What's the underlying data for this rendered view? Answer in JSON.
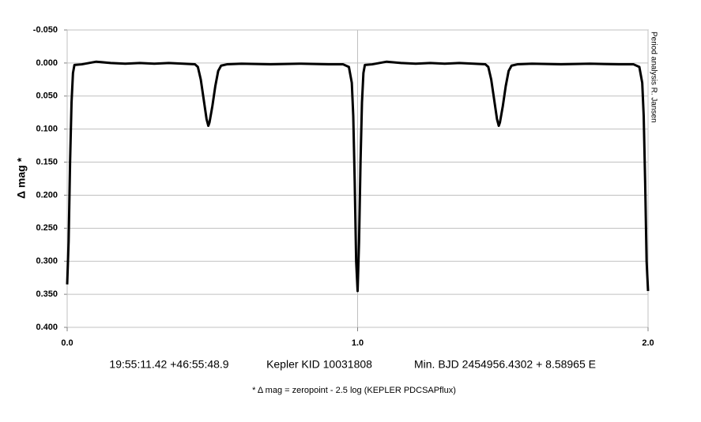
{
  "chart_data": {
    "type": "line",
    "ylabel": "Δ mag *",
    "credit": "Period analysis R. Jansen",
    "annotations": [
      "19:55:11.42 +46:55:48.9",
      "Kepler KID 10031808",
      "Min. BJD 2454956.4302 + 8.58965 E"
    ],
    "footnote": "* Δ mag = zeropoint - 2.5 log (KEPLER PDCSAPflux)",
    "color": "#000000",
    "y_inverted": true,
    "grid": true,
    "xlim": [
      0,
      2
    ],
    "xticks": [
      {
        "value": 0,
        "label": "0.0"
      },
      {
        "value": 1,
        "label": "1.0"
      },
      {
        "value": 2,
        "label": "2.0"
      }
    ],
    "ylim": [
      -0.05,
      0.4
    ],
    "yticks": [
      {
        "value": -0.05,
        "label": "-0.050"
      },
      {
        "value": 0,
        "label": "0.000"
      },
      {
        "value": 0.05,
        "label": "0.050"
      },
      {
        "value": 0.1,
        "label": "0.100"
      },
      {
        "value": 0.15,
        "label": "0.150"
      },
      {
        "value": 0.2,
        "label": "0.200"
      },
      {
        "value": 0.25,
        "label": "0.250"
      },
      {
        "value": 0.3,
        "label": "0.300"
      },
      {
        "value": 0.35,
        "label": "0.350"
      },
      {
        "value": 0.4,
        "label": "0.400"
      }
    ],
    "x": [
      0,
      0.005,
      0.01,
      0.015,
      0.02,
      0.025,
      0.05,
      0.1,
      0.15,
      0.2,
      0.25,
      0.3,
      0.35,
      0.4,
      0.44,
      0.45,
      0.46,
      0.47,
      0.48,
      0.486,
      0.49,
      0.5,
      0.51,
      0.52,
      0.53,
      0.55,
      0.6,
      0.7,
      0.8,
      0.9,
      0.95,
      0.97,
      0.98,
      0.985,
      0.99,
      0.995,
      1.0,
      1.005,
      1.01,
      1.015,
      1.02,
      1.025,
      1.05,
      1.1,
      1.15,
      1.2,
      1.25,
      1.3,
      1.35,
      1.4,
      1.44,
      1.45,
      1.46,
      1.47,
      1.48,
      1.486,
      1.49,
      1.5,
      1.51,
      1.52,
      1.53,
      1.55,
      1.6,
      1.7,
      1.8,
      1.9,
      1.95,
      1.97,
      1.98,
      1.985,
      1.99,
      1.995,
      2.0
    ],
    "values": [
      0.335,
      0.27,
      0.15,
      0.06,
      0.015,
      0.003,
      0.002,
      -0.002,
      0.0,
      0.001,
      0.0,
      0.001,
      0.0,
      0.001,
      0.002,
      0.006,
      0.025,
      0.055,
      0.085,
      0.095,
      0.09,
      0.065,
      0.035,
      0.012,
      0.004,
      0.002,
      0.001,
      0.002,
      0.001,
      0.002,
      0.002,
      0.006,
      0.03,
      0.08,
      0.18,
      0.3,
      0.345,
      0.27,
      0.15,
      0.06,
      0.015,
      0.003,
      0.002,
      -0.002,
      0.0,
      0.001,
      0.0,
      0.001,
      0.0,
      0.001,
      0.002,
      0.006,
      0.025,
      0.055,
      0.085,
      0.095,
      0.09,
      0.065,
      0.035,
      0.012,
      0.004,
      0.002,
      0.001,
      0.002,
      0.001,
      0.002,
      0.002,
      0.006,
      0.03,
      0.08,
      0.18,
      0.3,
      0.345
    ]
  }
}
